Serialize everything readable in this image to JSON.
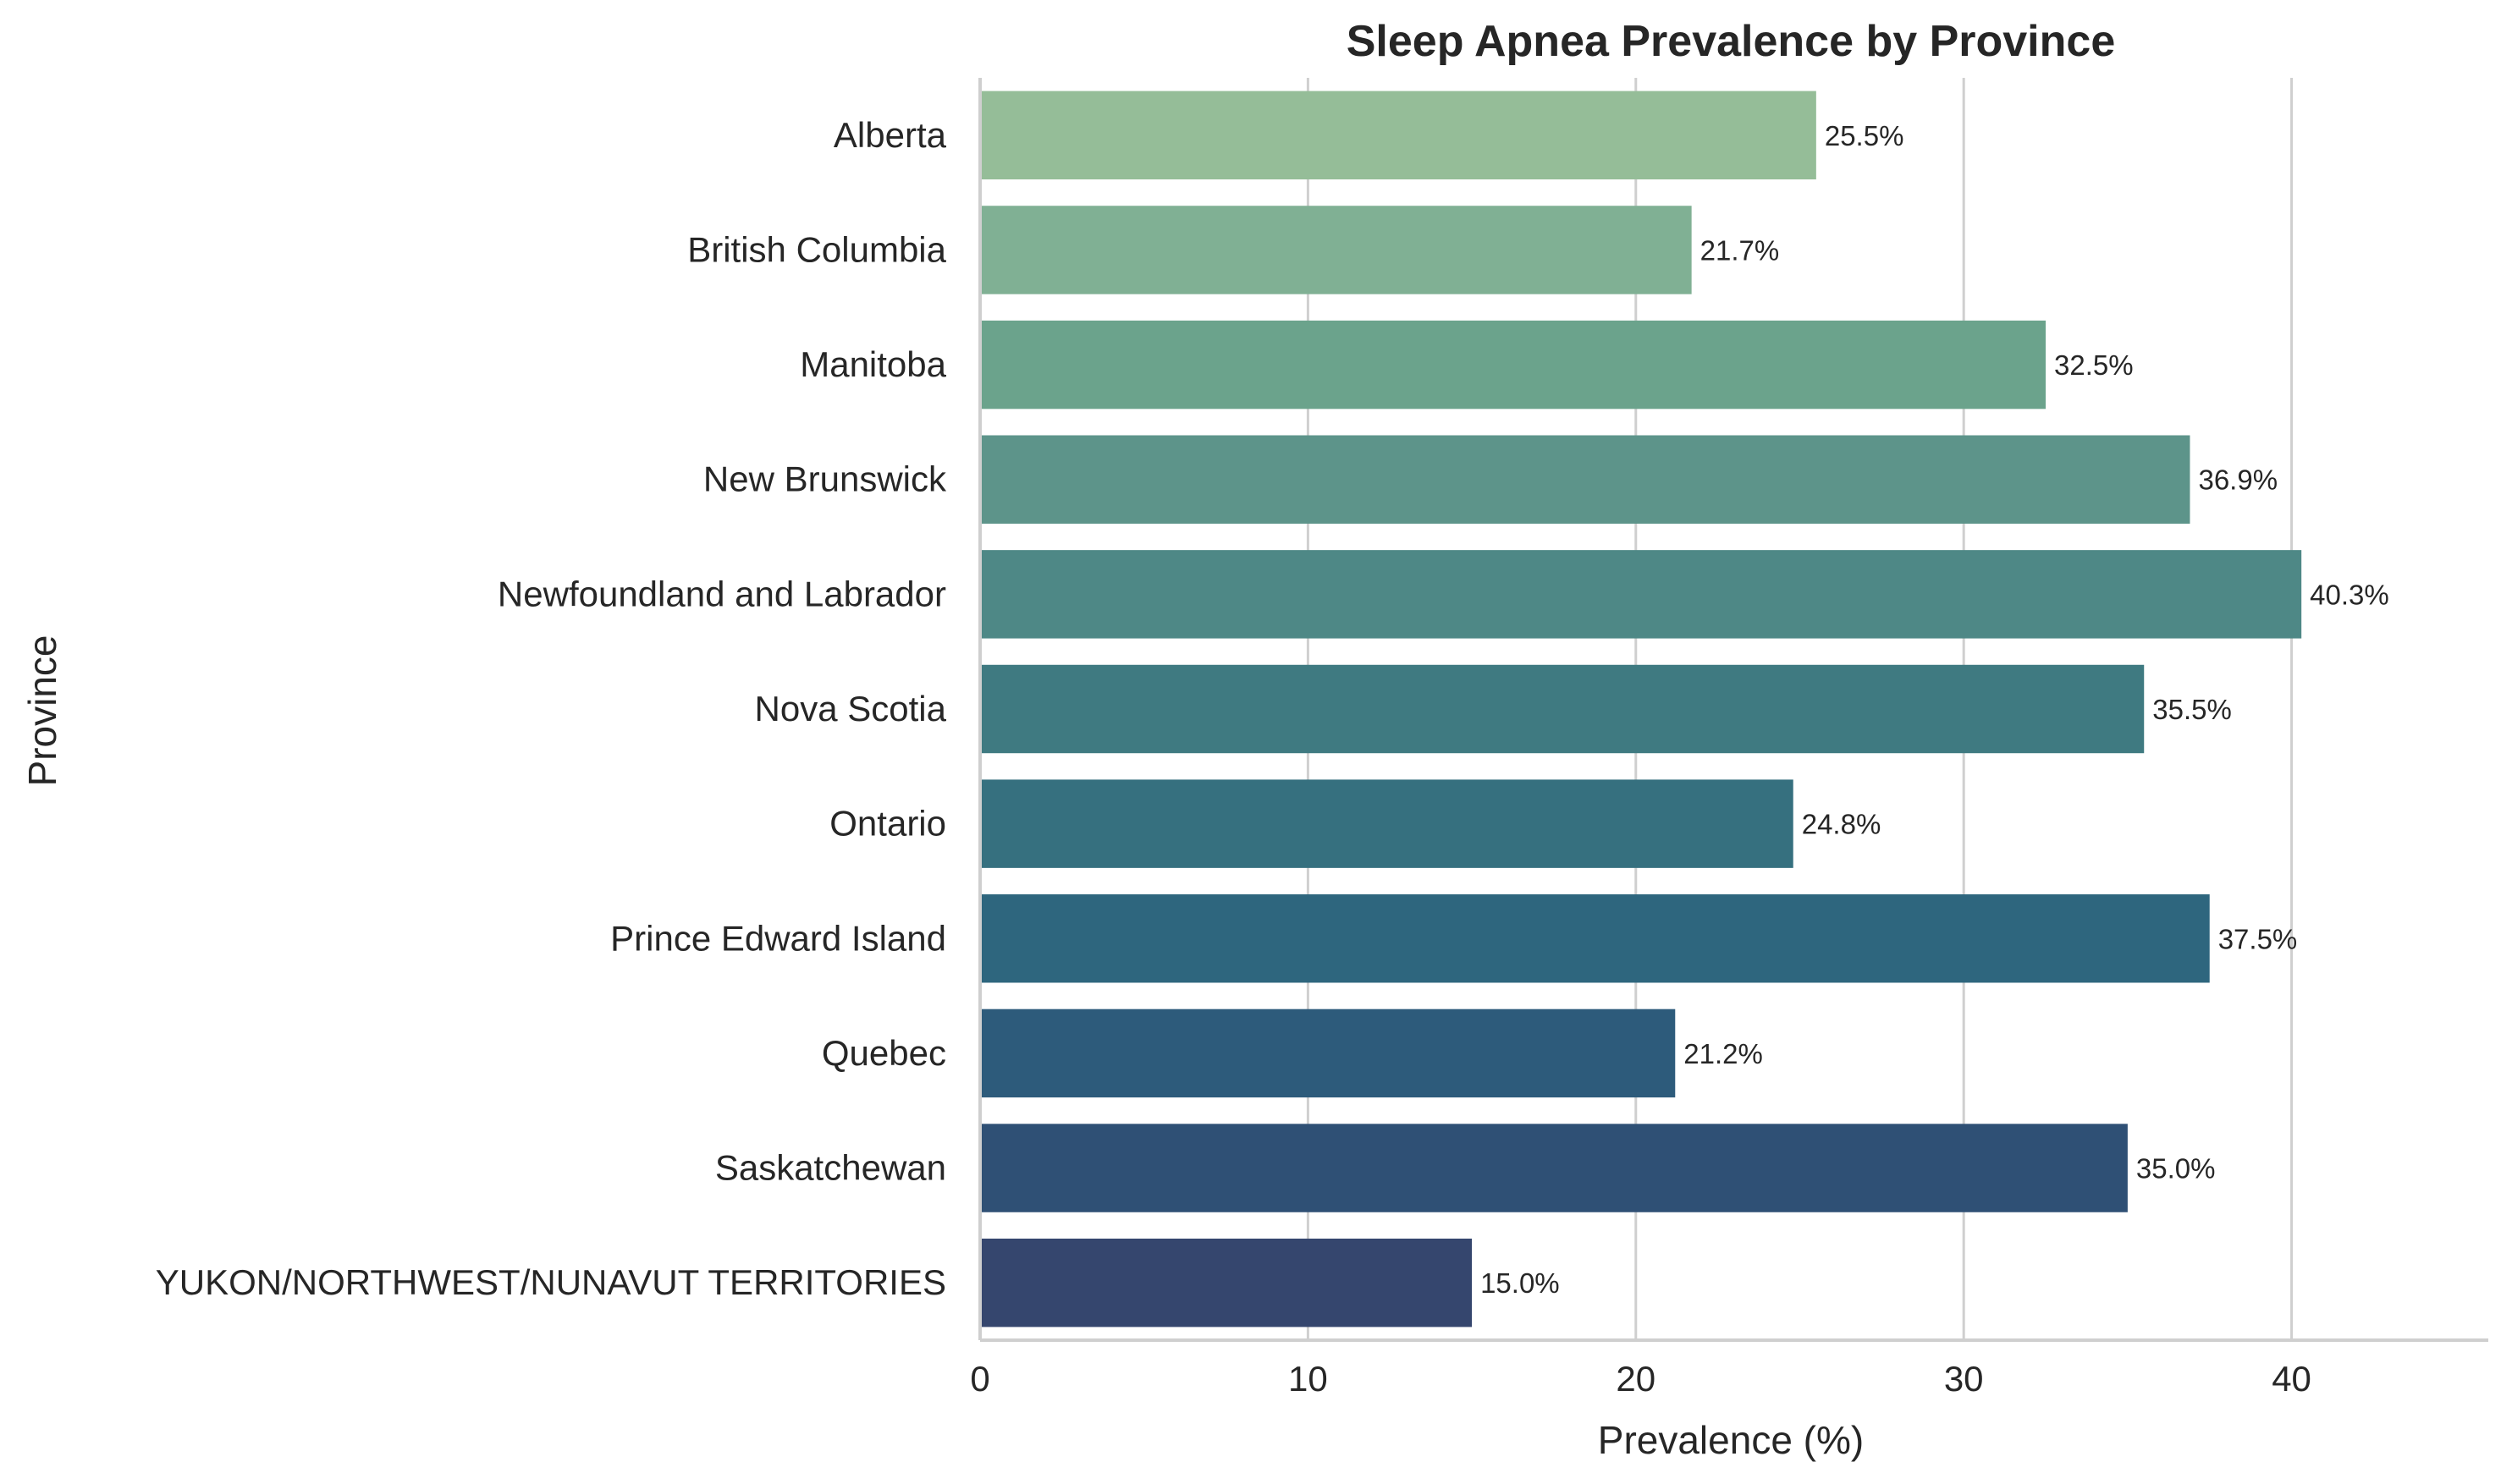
{
  "chart_data": {
    "type": "bar",
    "orientation": "horizontal",
    "title": "Sleep Apnea Prevalence by Province",
    "xlabel": "Prevalence (%)",
    "ylabel": "Province",
    "xlim": [
      0,
      46
    ],
    "xticks": [
      "0",
      "10",
      "20",
      "30",
      "40"
    ],
    "grid": "vertical",
    "categories": [
      "Alberta",
      "British Columbia",
      "Manitoba",
      "New Brunswick",
      "Newfoundland and Labrador",
      "Nova Scotia",
      "Ontario",
      "Prince Edward Island",
      "Quebec",
      "Saskatchewan",
      "YUKON/NORTHWEST/NUNAVUT TERRITORIES"
    ],
    "values": [
      25.5,
      21.7,
      32.5,
      36.9,
      40.3,
      35.5,
      24.8,
      37.5,
      21.2,
      35.0,
      15.0
    ],
    "value_labels": [
      "25.5%",
      "21.7%",
      "32.5%",
      "36.9%",
      "40.3%",
      "35.5%",
      "24.8%",
      "37.5%",
      "21.2%",
      "35.0%",
      "15.0%"
    ],
    "colors": [
      "#95bd98",
      "#80b094",
      "#6ba38c",
      "#5d948a",
      "#4e8886",
      "#3f7a81",
      "#36707f",
      "#2e667e",
      "#2d5b7b",
      "#2f5075",
      "#35466e"
    ]
  }
}
